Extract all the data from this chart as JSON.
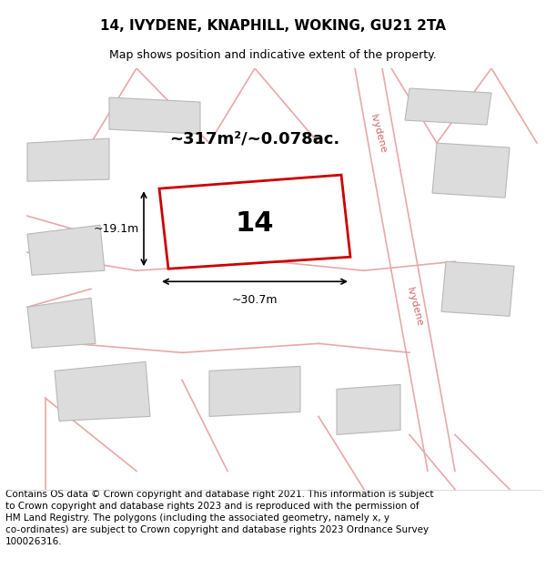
{
  "title": "14, IVYDENE, KNAPHILL, WOKING, GU21 2TA",
  "subtitle": "Map shows position and indicative extent of the property.",
  "footer_lines": [
    "Contains OS data © Crown copyright and database right 2021. This information is subject",
    "to Crown copyright and database rights 2023 and is reproduced with the permission of",
    "HM Land Registry. The polygons (including the associated geometry, namely x, y",
    "co-ordinates) are subject to Crown copyright and database rights 2023 Ordnance Survey",
    "100026316."
  ],
  "area_label": "~317m²/~0.078ac.",
  "plot_label": "14",
  "width_label": "~30.7m",
  "height_label": "~19.1m",
  "bg_color": "#f5f0f0",
  "map_bg": "#f5f0f0",
  "road_color": "#f5f0f0",
  "plot_fill": "#f5f0f0",
  "plot_border_color": "#cc0000",
  "neighbor_fill": "#e8e8e8",
  "neighbor_border": "#c0c0c0",
  "road_line_color": "#e8b0b0",
  "road_label_color": "#cc6666",
  "title_fontsize": 11,
  "subtitle_fontsize": 9,
  "footer_fontsize": 7.5,
  "area_label_fontsize": 13,
  "plot_label_fontsize": 22,
  "annotation_fontsize": 9
}
